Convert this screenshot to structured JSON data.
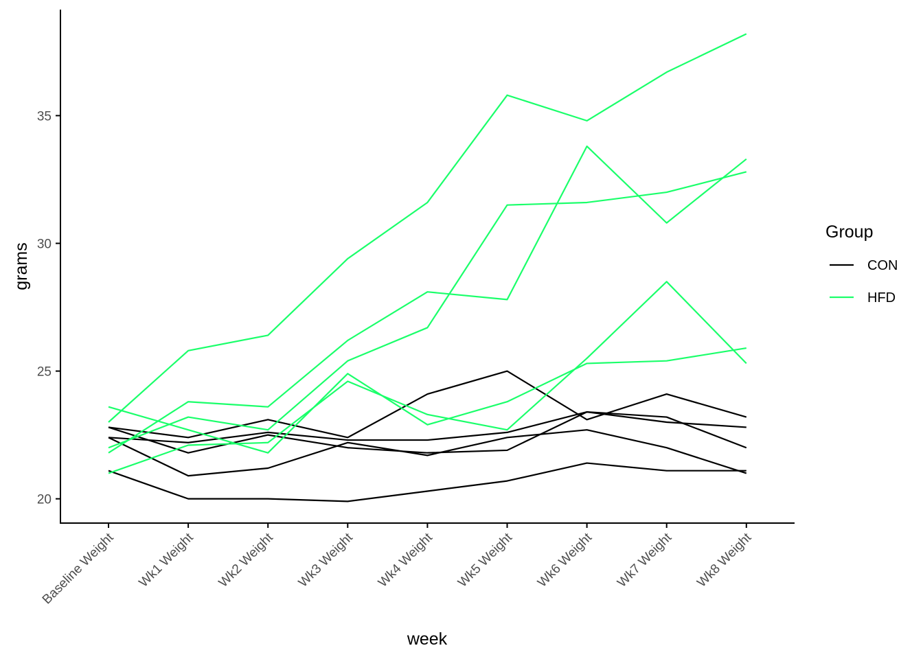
{
  "chart_data": {
    "type": "line",
    "xlabel": "week",
    "ylabel": "grams",
    "categories": [
      "Baseline Weight",
      "Wk1 Weight",
      "Wk2 Weight",
      "Wk3 Weight",
      "Wk4 Weight",
      "Wk5 Weight",
      "Wk6 Weight",
      "Wk7 Weight",
      "Wk8 Weight"
    ],
    "ylim": [
      19.05,
      39.15
    ],
    "yticks": [
      20,
      25,
      30,
      35
    ],
    "grid": false,
    "legend": {
      "title": "Group",
      "placement": "right",
      "entries": [
        {
          "label": "CON",
          "color": "#000000"
        },
        {
          "label": "HFD",
          "color": "#1AFF6A"
        }
      ]
    },
    "series": [
      {
        "group": "CON",
        "values": [
          22.8,
          22.4,
          23.1,
          22.4,
          24.1,
          25.0,
          23.1,
          24.1,
          23.2
        ]
      },
      {
        "group": "CON",
        "values": [
          22.4,
          22.2,
          22.6,
          22.3,
          22.3,
          22.6,
          23.4,
          23.2,
          22.0
        ]
      },
      {
        "group": "CON",
        "values": [
          22.8,
          21.8,
          22.5,
          22.0,
          21.8,
          21.9,
          23.4,
          23.0,
          22.8
        ]
      },
      {
        "group": "CON",
        "values": [
          22.4,
          20.9,
          21.2,
          22.2,
          21.7,
          22.4,
          22.7,
          22.0,
          21.0
        ]
      },
      {
        "group": "CON",
        "values": [
          21.1,
          20.0,
          20.0,
          19.9,
          20.3,
          20.7,
          21.4,
          21.1,
          21.1
        ]
      },
      {
        "group": "HFD",
        "values": [
          23.0,
          25.8,
          26.4,
          29.4,
          31.6,
          35.8,
          34.8,
          36.7,
          38.2
        ]
      },
      {
        "group": "HFD",
        "values": [
          21.8,
          23.8,
          23.6,
          26.2,
          28.1,
          27.8,
          33.8,
          30.8,
          33.3
        ]
      },
      {
        "group": "HFD",
        "values": [
          22.0,
          23.2,
          22.7,
          25.4,
          26.7,
          31.5,
          31.6,
          32.0,
          32.8
        ]
      },
      {
        "group": "HFD",
        "values": [
          21.0,
          22.1,
          22.2,
          24.6,
          23.3,
          22.7,
          25.5,
          28.5,
          25.3
        ]
      },
      {
        "group": "HFD",
        "values": [
          23.6,
          22.7,
          21.8,
          24.9,
          22.9,
          23.8,
          25.3,
          25.4,
          25.9
        ]
      }
    ]
  }
}
